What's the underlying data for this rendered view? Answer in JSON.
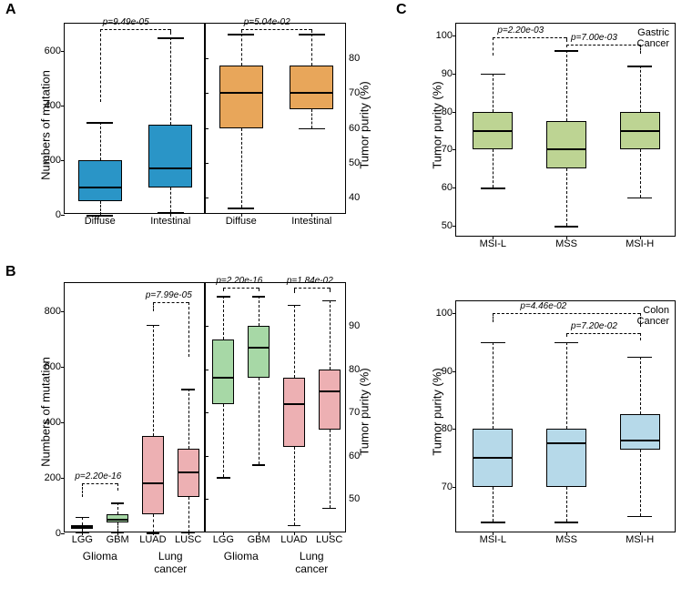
{
  "panelA": {
    "label": "A",
    "left": {
      "ylabel": "Numbers of mutation",
      "ylim": [
        0,
        700
      ],
      "yticks": [
        0,
        200,
        400,
        600
      ],
      "categories": [
        "Diffuse",
        "Intestinal"
      ],
      "color": "#2a95c7",
      "boxes": [
        {
          "q1": 50,
          "median": 100,
          "q3": 200,
          "wmin": 0,
          "wmax": 340
        },
        {
          "q1": 100,
          "median": 170,
          "q3": 330,
          "wmin": 10,
          "wmax": 650
        }
      ],
      "p": "p=9.49e-05"
    },
    "right": {
      "ylabel": "Tumor purity (%)",
      "ylim": [
        35,
        90
      ],
      "yticks": [
        40,
        50,
        60,
        70,
        80
      ],
      "categories": [
        "Diffuse",
        "Intestinal"
      ],
      "color": "#e8a65a",
      "boxes": [
        {
          "q1": 60,
          "median": 70,
          "q3": 78,
          "wmin": 37,
          "wmax": 87
        },
        {
          "q1": 65.5,
          "median": 70,
          "q3": 78,
          "wmin": 60,
          "wmax": 87
        },
        {
          "_extra_wmin": 37
        }
      ],
      "p": "p=5.04e-02"
    }
  },
  "panelB": {
    "label": "B",
    "left": {
      "ylabel": "Numbers of mutation",
      "ylim": [
        0,
        900
      ],
      "yticks": [
        0,
        200,
        400,
        600,
        800
      ],
      "categories": [
        "LGG",
        "GBM",
        "LUAD",
        "LUSC"
      ],
      "groups": [
        "Glioma",
        "Lung cancer"
      ],
      "colors": [
        "#a7d8a6",
        "#a7d8a6",
        "#edb0b3",
        "#edb0b3"
      ],
      "boxes": [
        {
          "q1": 15,
          "median": 22,
          "q3": 30,
          "wmin": 4,
          "wmax": 60
        },
        {
          "q1": 38,
          "median": 50,
          "q3": 70,
          "wmin": 5,
          "wmax": 110
        },
        {
          "q1": 70,
          "median": 180,
          "q3": 350,
          "wmin": 2,
          "wmax": 750
        },
        {
          "q1": 130,
          "median": 220,
          "q3": 305,
          "wmin": 4,
          "wmax": 520
        }
      ],
      "p": [
        "p=2.20e-16",
        "p=7.99e-05"
      ]
    },
    "right": {
      "ylabel": "Tumor purity (%)",
      "ylim": [
        42,
        100
      ],
      "yticks": [
        50,
        60,
        70,
        80,
        90
      ],
      "categories": [
        "LGG",
        "GBM",
        "LUAD",
        "LUSC"
      ],
      "groups": [
        "Glioma",
        "Lung cancer"
      ],
      "colors": [
        "#a7d8a6",
        "#a7d8a6",
        "#edb0b3",
        "#edb0b3"
      ],
      "boxes": [
        {
          "q1": 72,
          "median": 78,
          "q3": 87,
          "wmin": 55,
          "wmax": 97
        },
        {
          "q1": 78,
          "median": 85,
          "q3": 90,
          "wmin": 58,
          "wmax": 97
        },
        {
          "q1": 62,
          "median": 72,
          "q3": 78,
          "wmin": 44,
          "wmax": 95
        },
        {
          "q1": 66,
          "median": 75,
          "q3": 80,
          "wmin": 48,
          "wmax": 96
        }
      ],
      "p": [
        "p=2.20e-16",
        "p=1.84e-02"
      ]
    }
  },
  "panelC": {
    "label": "C",
    "top": {
      "ylabel": "Tumor purity (%)",
      "corner": "Gastric\nCancer",
      "ylim": [
        47,
        103
      ],
      "yticks": [
        50,
        60,
        70,
        80,
        90,
        100
      ],
      "categories": [
        "MSI-L",
        "MSS",
        "MSI-H"
      ],
      "color": "#bdd493",
      "boxes": [
        {
          "q1": 70,
          "median": 75,
          "q3": 80,
          "wmin": 60,
          "wmax": 90
        },
        {
          "q1": 65,
          "median": 70,
          "q3": 77.5,
          "wmin": 50,
          "wmax": 96
        },
        {
          "q1": 70,
          "median": 75,
          "q3": 80,
          "wmin": 57.5,
          "wmax": 92
        }
      ],
      "p": [
        "p=2.20e-03",
        "p=7.00e-03"
      ]
    },
    "bottom": {
      "ylabel": "Tumor purity (%)",
      "corner": "Colon\nCancer",
      "ylim": [
        62,
        102
      ],
      "yticks": [
        70,
        80,
        90,
        100
      ],
      "categories": [
        "MSI-L",
        "MSS",
        "MSI-H"
      ],
      "color": "#b6d9e9",
      "boxes": [
        {
          "q1": 70,
          "median": 75,
          "q3": 80,
          "wmin": 64,
          "wmax": 95
        },
        {
          "q1": 70,
          "median": 77.5,
          "q3": 80,
          "wmin": 64,
          "wmax": 95
        },
        {
          "q1": 76.5,
          "median": 78,
          "q3": 82.5,
          "wmin": 65,
          "wmax": 92.5
        }
      ],
      "p": [
        "p=4.46e-02",
        "p=7.20e-02"
      ]
    }
  }
}
